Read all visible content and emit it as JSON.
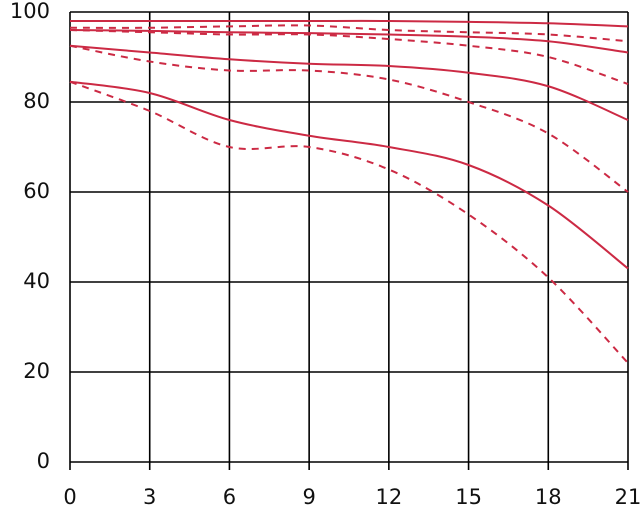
{
  "chart_data": {
    "type": "line",
    "x": [
      0,
      3,
      6,
      9,
      12,
      15,
      18,
      21
    ],
    "series": [
      {
        "color": "#cc2a44",
        "style": "solid",
        "values": [
          98,
          98,
          98,
          98,
          98,
          97.8,
          97.5,
          96.8
        ]
      },
      {
        "color": "#cc2a44",
        "style": "dashed",
        "values": [
          96.5,
          96.5,
          96.8,
          97,
          96,
          95.5,
          95,
          93.5
        ]
      },
      {
        "color": "#cc2a44",
        "style": "solid",
        "values": [
          96,
          95.8,
          95.5,
          95.3,
          95,
          94.5,
          93.5,
          91
        ]
      },
      {
        "color": "#cc2a44",
        "style": "dashed",
        "values": [
          96,
          95.5,
          95,
          95,
          94,
          92.5,
          90,
          84
        ]
      },
      {
        "color": "#cc2a44",
        "style": "solid",
        "values": [
          92.5,
          91,
          89.5,
          88.5,
          88,
          86.5,
          83.5,
          76
        ]
      },
      {
        "color": "#cc2a44",
        "style": "dashed",
        "values": [
          92.5,
          89,
          87,
          87,
          85,
          80,
          73,
          60
        ]
      },
      {
        "color": "#cc2a44",
        "style": "solid",
        "values": [
          84.5,
          82,
          76,
          72.5,
          70,
          66,
          57,
          43
        ]
      },
      {
        "color": "#cc2a44",
        "style": "dashed",
        "values": [
          84.5,
          78,
          70,
          70,
          65,
          55,
          41,
          22
        ]
      }
    ],
    "xlim": [
      0,
      21
    ],
    "xticks": [
      0,
      3,
      6,
      9,
      12,
      15,
      18,
      21
    ],
    "ylim": [
      0,
      100
    ],
    "yticks": [
      0,
      20,
      40,
      60,
      80,
      100
    ],
    "grid": true
  }
}
